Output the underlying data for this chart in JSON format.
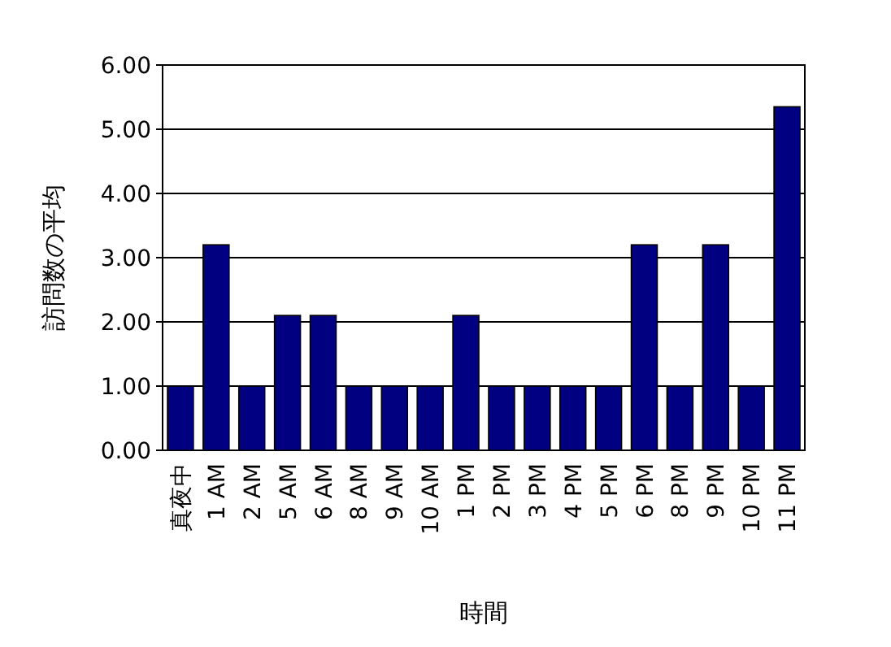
{
  "chart_data": {
    "type": "bar",
    "xlabel": "時間",
    "ylabel": "訪問数の平均",
    "categories": [
      "真夜中",
      "1 AM",
      "2 AM",
      "5 AM",
      "6 AM",
      "8 AM",
      "9 AM",
      "10 AM",
      "1 PM",
      "2 PM",
      "3 PM",
      "4 PM",
      "5 PM",
      "6 PM",
      "8 PM",
      "9 PM",
      "10 PM",
      "11 PM"
    ],
    "values": [
      1,
      3.2,
      1,
      2.1,
      2.1,
      1,
      1,
      1,
      2.1,
      1,
      1,
      1,
      1,
      3.2,
      1,
      3.2,
      1,
      5.35
    ],
    "color": "#000080",
    "ylim": [
      0,
      6
    ],
    "yticks": [
      {
        "value": 0,
        "label": "0.00"
      },
      {
        "value": 1,
        "label": "1.00"
      },
      {
        "value": 2,
        "label": "2.00"
      },
      {
        "value": 3,
        "label": "3.00"
      },
      {
        "value": 4,
        "label": "4.00"
      },
      {
        "value": 5,
        "label": "5.00"
      },
      {
        "value": 6,
        "label": "6.00"
      }
    ],
    "grid": "y"
  }
}
